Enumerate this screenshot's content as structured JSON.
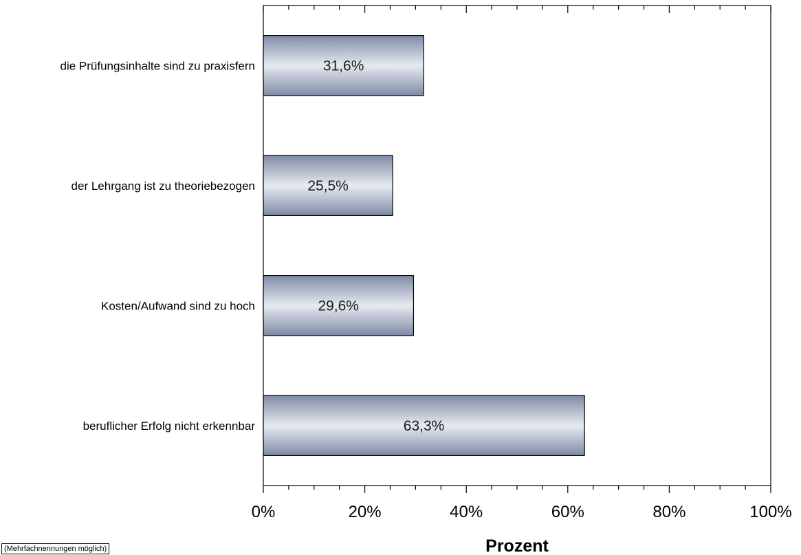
{
  "chart_data": {
    "type": "bar",
    "orientation": "horizontal",
    "categories": [
      "die Prüfungsinhalte sind zu praxisfern",
      "der Lehrgang ist zu theoriebezogen",
      "Kosten/Aufwand sind zu hoch",
      "beruflicher Erfolg nicht erkennbar"
    ],
    "values": [
      31.6,
      25.5,
      29.6,
      63.3
    ],
    "value_labels": [
      "31,6%",
      "25,5%",
      "29,6%",
      "63,3%"
    ],
    "xlabel": "Prozent",
    "xlim": [
      0,
      100
    ],
    "x_ticks": [
      0,
      20,
      40,
      60,
      80,
      100
    ],
    "x_tick_labels": [
      "0%",
      "20%",
      "40%",
      "60%",
      "80%",
      "100%"
    ],
    "grid": false,
    "colors": {
      "bar_edge": "#4f5a75",
      "bar_dark": "#7f8aa5",
      "bar_light": "#e6eaf1",
      "axis": "#000000"
    }
  },
  "footnote": "(Mehrfachnennungen möglich)"
}
